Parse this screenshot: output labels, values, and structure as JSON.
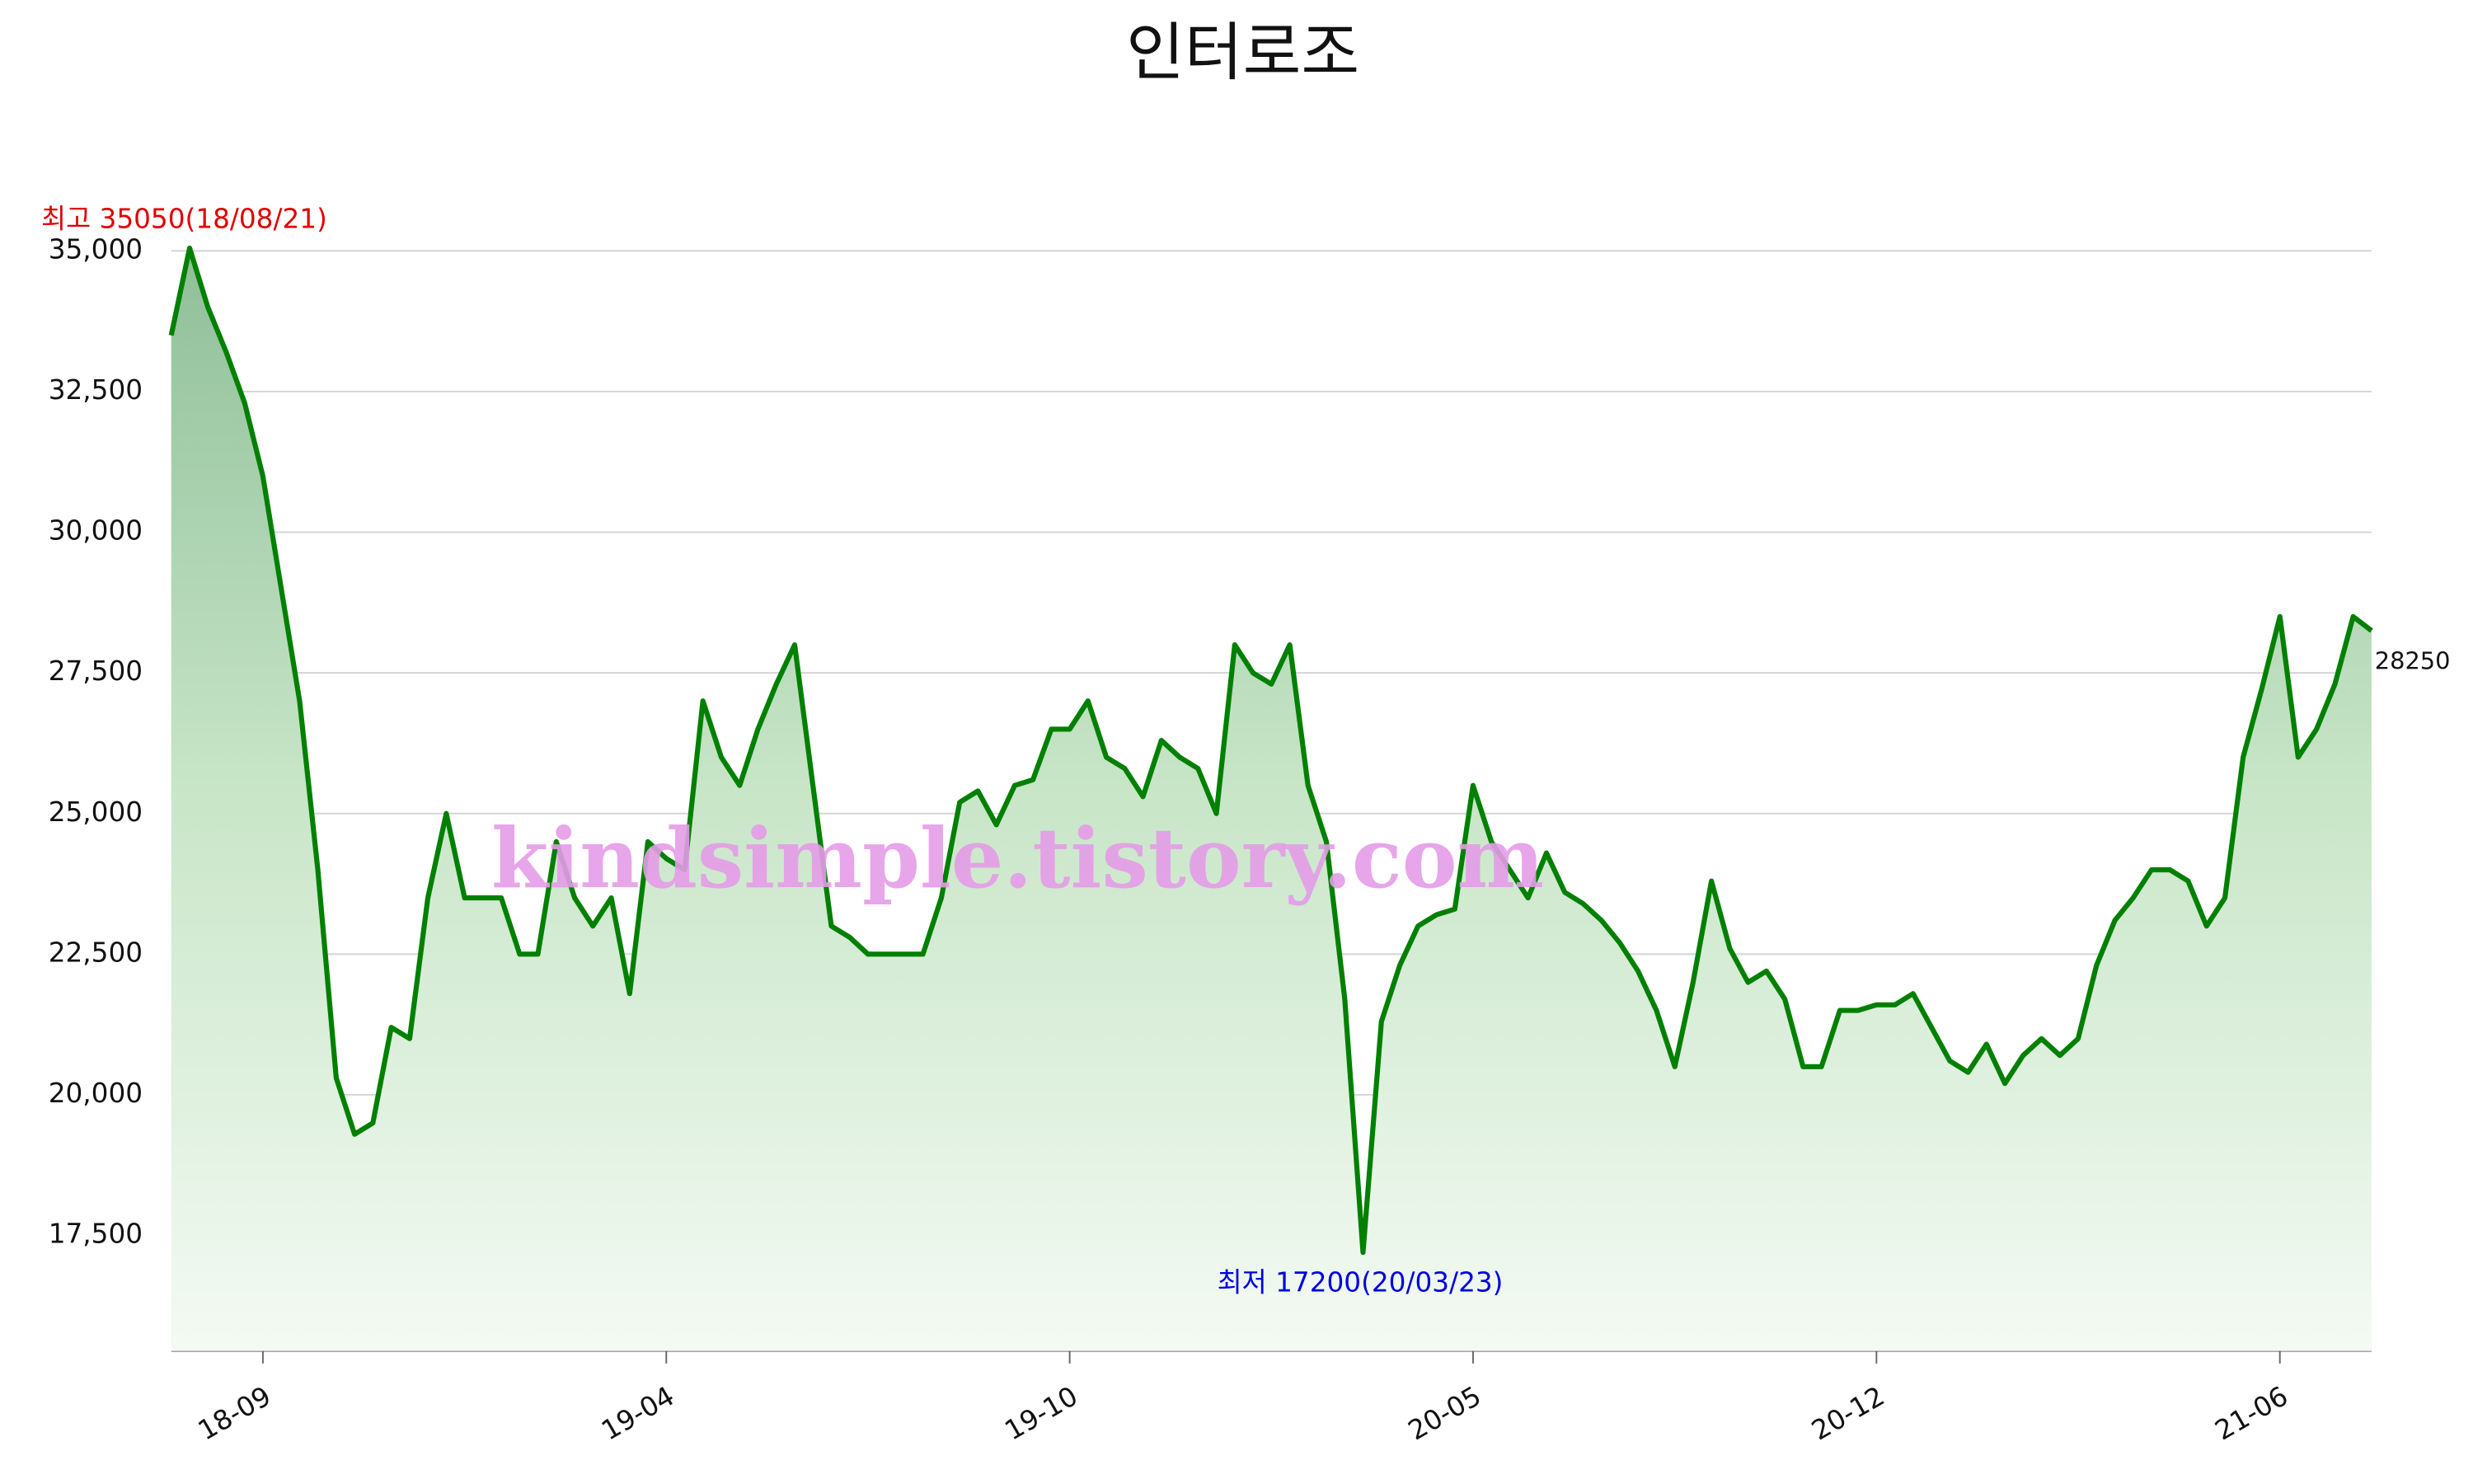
{
  "chart_data": {
    "type": "line",
    "title": "인터로조",
    "categories": [
      null,
      null,
      null,
      null,
      null,
      "18-09",
      null,
      null,
      null,
      null,
      null,
      null,
      null,
      null,
      null,
      null,
      null,
      null,
      null,
      null,
      null,
      null,
      null,
      null,
      null,
      null,
      null,
      "19-04",
      null,
      null,
      null,
      null,
      null,
      null,
      null,
      null,
      null,
      null,
      null,
      null,
      null,
      null,
      null,
      null,
      null,
      null,
      null,
      null,
      null,
      "19-10",
      null,
      null,
      null,
      null,
      null,
      null,
      null,
      null,
      null,
      null,
      null,
      null,
      null,
      null,
      null,
      null,
      null,
      null,
      null,
      null,
      null,
      "20-05",
      null,
      null,
      null,
      null,
      null,
      null,
      null,
      null,
      null,
      null,
      null,
      null,
      null,
      null,
      null,
      null,
      null,
      null,
      null,
      null,
      null,
      "20-12",
      null,
      null,
      null,
      null,
      null,
      null,
      null,
      null,
      null,
      null,
      null,
      null,
      null,
      null,
      null,
      null,
      null,
      null,
      null,
      null,
      null,
      "21-06",
      null,
      null,
      null,
      null,
      null
    ],
    "series": [
      {
        "name": "인터로조",
        "color": "#008000",
        "values": [
          33500,
          35050,
          34000,
          33200,
          32300,
          31000,
          29000,
          27000,
          24000,
          20300,
          19300,
          19500,
          21200,
          21000,
          23500,
          25000,
          23500,
          23500,
          23500,
          22500,
          22500,
          24500,
          23500,
          23000,
          23500,
          21800,
          24500,
          24200,
          24000,
          27000,
          26000,
          25500,
          26500,
          27300,
          28000,
          25500,
          23000,
          22800,
          22500,
          22500,
          22500,
          22500,
          23500,
          25200,
          25400,
          24800,
          25500,
          25600,
          26500,
          26500,
          27000,
          26000,
          25800,
          25300,
          26300,
          26000,
          25800,
          25000,
          28000,
          27500,
          27300,
          28000,
          25500,
          24500,
          21700,
          17200,
          21300,
          22300,
          23000,
          23200,
          23300,
          25500,
          24500,
          24000,
          23500,
          24300,
          23600,
          23400,
          23100,
          22700,
          22200,
          21500,
          20500,
          22000,
          23800,
          22600,
          22000,
          22200,
          21700,
          20500,
          20500,
          21500,
          21500,
          21600,
          21600,
          21800,
          21200,
          20600,
          20400,
          20900,
          20200,
          20700,
          21000,
          20700,
          21000,
          22300,
          23100,
          23500,
          24000,
          24000,
          23800,
          23000,
          23500,
          26000,
          27200,
          28500,
          26000,
          26500,
          27300,
          28500,
          28250
        ]
      }
    ],
    "ylim": [
      15450,
      35500
    ],
    "yticks": [
      {
        "value": 17500,
        "label": "17,500"
      },
      {
        "value": 20000,
        "label": "20,000"
      },
      {
        "value": 22500,
        "label": "22,500"
      },
      {
        "value": 25000,
        "label": "25,000"
      },
      {
        "value": 27500,
        "label": "27,500"
      },
      {
        "value": 30000,
        "label": "30,000"
      },
      {
        "value": 32500,
        "label": "32,500"
      },
      {
        "value": 35000,
        "label": "35,000"
      }
    ],
    "grid": true,
    "annotations": {
      "high": "최고 35050(18/08/21)",
      "low": "최저 17200(20/03/23)"
    },
    "watermark": "kindsimple.tistory.com"
  }
}
